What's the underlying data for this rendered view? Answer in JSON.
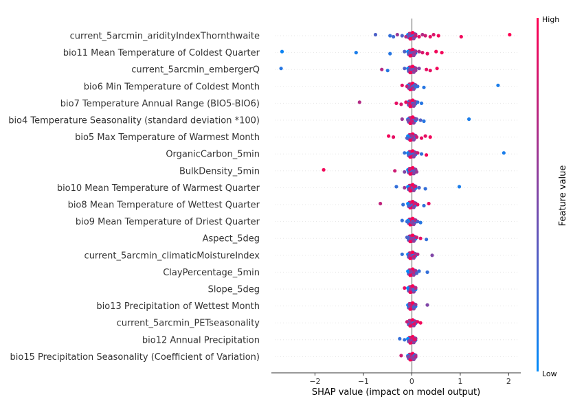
{
  "chart_data": {
    "type": "scatter",
    "subtype": "shap-beeswarm",
    "xlabel": "SHAP value (impact on model output)",
    "xlim": [
      -2.9,
      2.25
    ],
    "xticks": [
      -2,
      -1,
      0,
      1,
      2
    ],
    "xtick_labels": [
      "−2",
      "−1",
      "0",
      "1",
      "2"
    ],
    "grid": false,
    "colorbar": {
      "label": "Feature value",
      "high_label": "High",
      "low_label": "Low",
      "low_color": "#008bfb",
      "high_color": "#ff0052",
      "placement": "right"
    },
    "features": [
      {
        "name": "current_5arcmin_aridityIndexThornthwaite",
        "points": [
          [
            -0.75,
            0.3
          ],
          [
            -0.45,
            0.2
          ],
          [
            -0.38,
            0.25
          ],
          [
            -0.3,
            0.6
          ],
          [
            -0.2,
            0.3
          ],
          [
            -0.12,
            0.7
          ],
          [
            -0.05,
            0.5
          ],
          [
            0.08,
            0.8
          ],
          [
            0.15,
            0.9
          ],
          [
            0.22,
            0.7
          ],
          [
            0.28,
            0.8
          ],
          [
            0.38,
            0.9
          ],
          [
            0.45,
            0.85
          ],
          [
            0.55,
            0.95
          ],
          [
            1.02,
            0.95
          ],
          [
            2.02,
            1.0
          ]
        ]
      },
      {
        "name": "bio11 Mean Temperature of Coldest Quarter",
        "points": [
          [
            -2.68,
            0.05
          ],
          [
            -1.15,
            0.1
          ],
          [
            -0.45,
            0.15
          ],
          [
            -0.15,
            0.3
          ],
          [
            -0.05,
            0.4
          ],
          [
            0.05,
            0.6
          ],
          [
            0.15,
            0.7
          ],
          [
            0.22,
            0.85
          ],
          [
            0.32,
            0.9
          ],
          [
            0.5,
            0.95
          ],
          [
            0.62,
            0.95
          ]
        ]
      },
      {
        "name": "current_5arcmin_embergerQ",
        "points": [
          [
            -2.7,
            0.15
          ],
          [
            -0.62,
            0.7
          ],
          [
            -0.5,
            0.15
          ],
          [
            -0.15,
            0.3
          ],
          [
            -0.05,
            0.5
          ],
          [
            0.08,
            0.6
          ],
          [
            0.15,
            0.5
          ],
          [
            0.3,
            0.9
          ],
          [
            0.38,
            0.9
          ],
          [
            0.52,
            0.95
          ]
        ]
      },
      {
        "name": "bio6 Min Temperature of Coldest Month",
        "points": [
          [
            -0.2,
            0.9
          ],
          [
            -0.1,
            0.8
          ],
          [
            -0.05,
            0.5
          ],
          [
            0.05,
            0.3
          ],
          [
            0.12,
            0.2
          ],
          [
            0.25,
            0.15
          ],
          [
            1.78,
            0.1
          ]
        ]
      },
      {
        "name": "bio7 Temperature Annual Range (BIO5-BIO6)",
        "points": [
          [
            -1.08,
            0.7
          ],
          [
            -0.32,
            0.9
          ],
          [
            -0.22,
            0.85
          ],
          [
            -0.12,
            0.9
          ],
          [
            -0.05,
            0.85
          ],
          [
            0.05,
            0.5
          ],
          [
            0.12,
            0.2
          ],
          [
            0.2,
            0.15
          ]
        ]
      },
      {
        "name": "bio4 Temperature Seasonality (standard deviation *100)",
        "points": [
          [
            -0.2,
            0.6
          ],
          [
            -0.08,
            0.5
          ],
          [
            0.0,
            0.8
          ],
          [
            0.1,
            0.4
          ],
          [
            0.18,
            0.3
          ],
          [
            0.25,
            0.15
          ],
          [
            1.18,
            0.1
          ]
        ]
      },
      {
        "name": "bio5 Max Temperature of Warmest Month",
        "points": [
          [
            -0.48,
            0.95
          ],
          [
            -0.38,
            0.9
          ],
          [
            -0.1,
            0.3
          ],
          [
            0.0,
            0.6
          ],
          [
            0.1,
            0.8
          ],
          [
            0.2,
            0.9
          ],
          [
            0.28,
            0.9
          ],
          [
            0.38,
            0.95
          ]
        ]
      },
      {
        "name": "OrganicCarbon_5min",
        "points": [
          [
            -0.15,
            0.2
          ],
          [
            -0.05,
            0.3
          ],
          [
            0.05,
            0.5
          ],
          [
            0.12,
            0.8
          ],
          [
            0.2,
            0.2
          ],
          [
            0.3,
            0.95
          ],
          [
            1.9,
            0.1
          ]
        ]
      },
      {
        "name": "BulkDensity_5min",
        "points": [
          [
            -1.82,
            0.95
          ],
          [
            -0.35,
            0.8
          ],
          [
            -0.15,
            0.5
          ],
          [
            -0.05,
            0.8
          ],
          [
            0.05,
            0.4
          ],
          [
            0.1,
            0.6
          ]
        ]
      },
      {
        "name": "bio10 Mean Temperature of Warmest Quarter",
        "points": [
          [
            -0.32,
            0.2
          ],
          [
            -0.15,
            0.6
          ],
          [
            -0.05,
            0.8
          ],
          [
            0.05,
            0.85
          ],
          [
            0.15,
            0.3
          ],
          [
            0.28,
            0.2
          ],
          [
            0.98,
            0.1
          ]
        ]
      },
      {
        "name": "bio8 Mean Temperature of Wettest Quarter",
        "points": [
          [
            -0.65,
            0.75
          ],
          [
            -0.18,
            0.2
          ],
          [
            -0.05,
            0.3
          ],
          [
            0.05,
            0.8
          ],
          [
            0.12,
            0.9
          ],
          [
            0.25,
            0.2
          ],
          [
            0.35,
            0.9
          ]
        ]
      },
      {
        "name": "bio9 Mean Temperature of Driest Quarter",
        "points": [
          [
            -0.2,
            0.2
          ],
          [
            -0.1,
            0.2
          ],
          [
            0.0,
            0.5
          ],
          [
            0.08,
            0.7
          ],
          [
            0.12,
            0.3
          ],
          [
            0.18,
            0.15
          ]
        ]
      },
      {
        "name": "Aspect_5deg",
        "points": [
          [
            -0.1,
            0.3
          ],
          [
            -0.03,
            0.5
          ],
          [
            0.03,
            0.6
          ],
          [
            0.1,
            0.8
          ],
          [
            0.18,
            0.9
          ],
          [
            0.3,
            0.2
          ]
        ]
      },
      {
        "name": "current_5arcmin_climaticMoistureIndex",
        "points": [
          [
            -0.2,
            0.2
          ],
          [
            -0.05,
            0.6
          ],
          [
            0.05,
            0.8
          ],
          [
            0.12,
            0.7
          ],
          [
            0.42,
            0.5
          ]
        ]
      },
      {
        "name": "ClayPercentage_5min",
        "points": [
          [
            -0.02,
            0.6
          ],
          [
            0.05,
            0.7
          ],
          [
            0.1,
            0.3
          ],
          [
            0.15,
            0.2
          ],
          [
            0.32,
            0.2
          ]
        ]
      },
      {
        "name": "Slope_5deg",
        "points": [
          [
            -0.15,
            0.9
          ],
          [
            -0.03,
            0.6
          ],
          [
            0.03,
            0.3
          ],
          [
            0.08,
            0.7
          ]
        ]
      },
      {
        "name": "bio13 Precipitation of Wettest Month",
        "points": [
          [
            -0.05,
            0.6
          ],
          [
            0.0,
            0.8
          ],
          [
            0.04,
            0.3
          ],
          [
            0.32,
            0.5
          ]
        ]
      },
      {
        "name": "current_5arcmin_PETseasonality",
        "points": [
          [
            -0.1,
            0.8
          ],
          [
            -0.03,
            0.6
          ],
          [
            0.05,
            0.9
          ],
          [
            0.12,
            0.9
          ],
          [
            0.18,
            0.95
          ]
        ]
      },
      {
        "name": "bio12 Annual Precipitation",
        "points": [
          [
            -0.25,
            0.2
          ],
          [
            -0.15,
            0.2
          ],
          [
            -0.05,
            0.6
          ],
          [
            0.03,
            0.85
          ],
          [
            0.07,
            0.9
          ]
        ]
      },
      {
        "name": "bio15 Precipitation Seasonality (Coefficient of Variation)",
        "points": [
          [
            -0.22,
            0.8
          ],
          [
            -0.08,
            0.5
          ],
          [
            0.0,
            0.6
          ],
          [
            0.05,
            0.3
          ],
          [
            0.08,
            0.7
          ]
        ]
      }
    ]
  }
}
